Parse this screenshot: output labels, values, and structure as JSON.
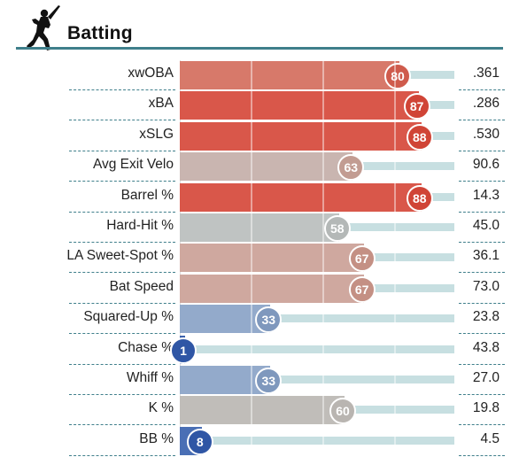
{
  "section": {
    "title": "Batting",
    "icon": "batter-icon"
  },
  "rows": [
    {
      "label": "xwOBA",
      "percentile": 80,
      "percentile_text": "80",
      "value": ".361",
      "bar_color": "#d7796a",
      "bubble_color": "#cf5b4c"
    },
    {
      "label": "xBA",
      "percentile": 87,
      "percentile_text": "87",
      "value": ".286",
      "bar_color": "#d9574a",
      "bubble_color": "#d04436"
    },
    {
      "label": "xSLG",
      "percentile": 88,
      "percentile_text": "88",
      "value": ".530",
      "bar_color": "#d9574a",
      "bubble_color": "#d04436"
    },
    {
      "label": "Avg Exit Velo",
      "percentile": 63,
      "percentile_text": "63",
      "value": "90.6",
      "bar_color": "#c9b5b0",
      "bubble_color": "#c29c92"
    },
    {
      "label": "Barrel %",
      "percentile": 88,
      "percentile_text": "88",
      "value": "14.3",
      "bar_color": "#d9574a",
      "bubble_color": "#d04436"
    },
    {
      "label": "Hard-Hit %",
      "percentile": 58,
      "percentile_text": "58",
      "value": "45.0",
      "bar_color": "#bfc3c2",
      "bubble_color": "#b4b8b7"
    },
    {
      "label": "LA Sweet-Spot %",
      "percentile": 67,
      "percentile_text": "67",
      "value": "36.1",
      "bar_color": "#cfa89f",
      "bubble_color": "#c49084"
    },
    {
      "label": "Bat Speed",
      "percentile": 67,
      "percentile_text": "67",
      "value": "73.0",
      "bar_color": "#cfa89f",
      "bubble_color": "#c49084"
    },
    {
      "label": "Squared-Up %",
      "percentile": 33,
      "percentile_text": "33",
      "value": "23.8",
      "bar_color": "#93aacb",
      "bubble_color": "#7f98bd"
    },
    {
      "label": "Chase %",
      "percentile": 1,
      "percentile_text": "1",
      "value": "43.8",
      "bar_color": "#3d63ad",
      "bubble_color": "#2f56a5"
    },
    {
      "label": "Whiff %",
      "percentile": 33,
      "percentile_text": "33",
      "value": "27.0",
      "bar_color": "#93aacb",
      "bubble_color": "#7f98bd"
    },
    {
      "label": "K %",
      "percentile": 60,
      "percentile_text": "60",
      "value": "19.8",
      "bar_color": "#c0bdb9",
      "bubble_color": "#b9b5b1"
    },
    {
      "label": "BB %",
      "percentile": 8,
      "percentile_text": "8",
      "value": "4.5",
      "bar_color": "#4a6fb5",
      "bubble_color": "#2f56a5"
    }
  ]
}
